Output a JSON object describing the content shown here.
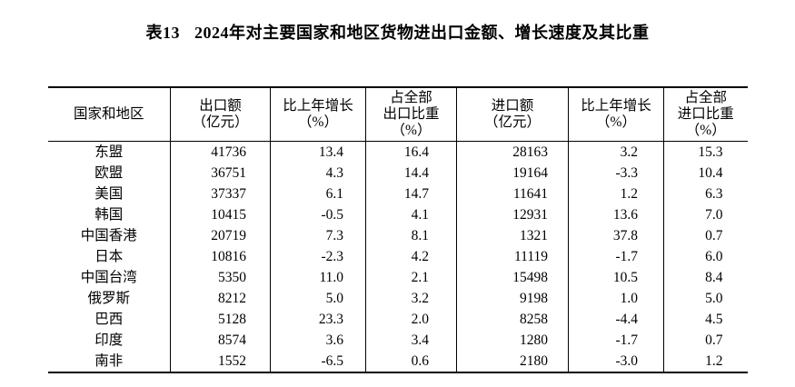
{
  "page": {
    "title_label": "表13",
    "title_text": "2024年对主要国家和地区货物进出口金额、增长速度及其比重"
  },
  "table": {
    "headers": [
      {
        "id": "region",
        "lines": [
          "国家和地区"
        ]
      },
      {
        "id": "export-value",
        "lines": [
          "出口额",
          "（亿元）"
        ]
      },
      {
        "id": "export-growth",
        "lines": [
          "比上年增长",
          "（%）"
        ]
      },
      {
        "id": "export-share",
        "lines": [
          "占全部",
          "出口比重",
          "（%）"
        ]
      },
      {
        "id": "import-value",
        "lines": [
          "进口额",
          "（亿元）"
        ]
      },
      {
        "id": "import-growth",
        "lines": [
          "比上年增长",
          "（%）"
        ]
      },
      {
        "id": "import-share",
        "lines": [
          "占全部",
          "进口比重",
          "（%）"
        ]
      }
    ],
    "rows": [
      {
        "region": "东盟",
        "values": [
          "41736",
          "13.4",
          "16.4",
          "28163",
          "3.2",
          "15.3"
        ]
      },
      {
        "region": "欧盟",
        "values": [
          "36751",
          "4.3",
          "14.4",
          "19164",
          "-3.3",
          "10.4"
        ]
      },
      {
        "region": "美国",
        "values": [
          "37337",
          "6.1",
          "14.7",
          "11641",
          "1.2",
          "6.3"
        ]
      },
      {
        "region": "韩国",
        "values": [
          "10415",
          "-0.5",
          "4.1",
          "12931",
          "13.6",
          "7.0"
        ]
      },
      {
        "region": "中国香港",
        "values": [
          "20719",
          "7.3",
          "8.1",
          "1321",
          "37.8",
          "0.7"
        ]
      },
      {
        "region": "日本",
        "values": [
          "10816",
          "-2.3",
          "4.2",
          "11119",
          "-1.7",
          "6.0"
        ]
      },
      {
        "region": "中国台湾",
        "values": [
          "5350",
          "11.0",
          "2.1",
          "15498",
          "10.5",
          "8.4"
        ]
      },
      {
        "region": "俄罗斯",
        "values": [
          "8212",
          "5.0",
          "3.2",
          "9198",
          "1.0",
          "5.0"
        ]
      },
      {
        "region": "巴西",
        "values": [
          "5128",
          "23.3",
          "2.0",
          "8258",
          "-4.4",
          "4.5"
        ]
      },
      {
        "region": "印度",
        "values": [
          "8574",
          "3.6",
          "3.4",
          "1280",
          "-1.7",
          "0.7"
        ]
      },
      {
        "region": "南非",
        "values": [
          "1552",
          "-6.5",
          "0.6",
          "2180",
          "-3.0",
          "1.2"
        ]
      }
    ]
  },
  "colors": {
    "text": "#000000",
    "border": "#000000",
    "background": "#ffffff"
  }
}
